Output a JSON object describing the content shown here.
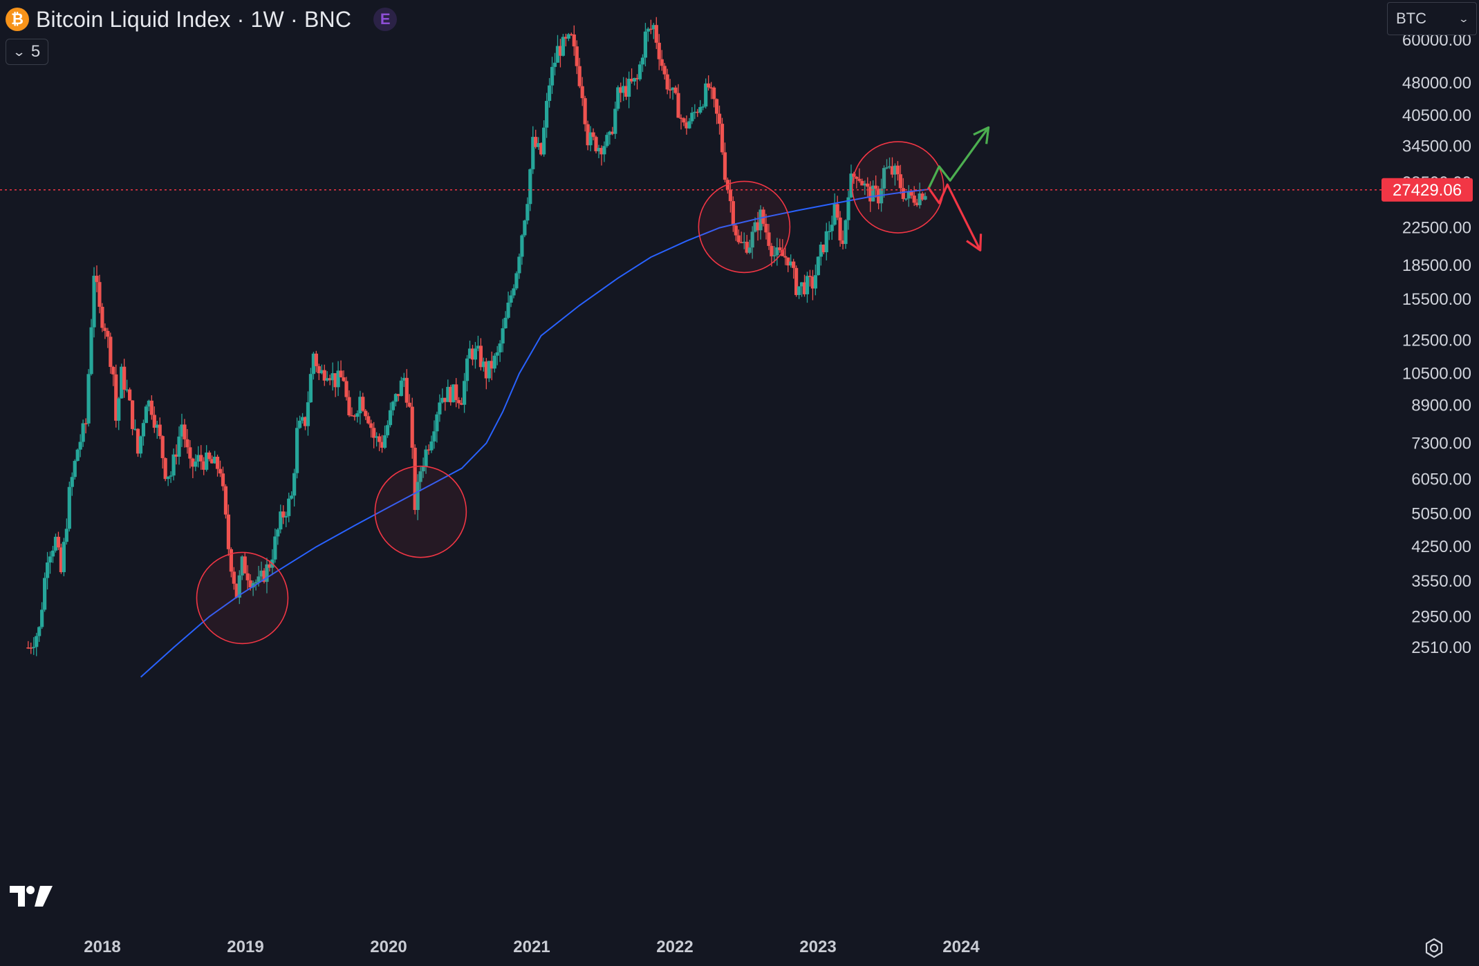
{
  "header": {
    "coin_symbol": "₿",
    "title": "Bitcoin Liquid Index · 1W · BNC",
    "exchange_badge": "E",
    "collapse_count": "5"
  },
  "currency_selector": {
    "value": "BTC"
  },
  "colors": {
    "background": "#141722",
    "up_candle": "#26a69a",
    "down_candle": "#ef5350",
    "moving_average": "#2962ff",
    "circle": "#f23645",
    "bull_arrow": "#4caf50",
    "bear_arrow": "#f23645",
    "price_line": "#f23645"
  },
  "icons": {
    "logo": "tradingview-logo-icon",
    "settings": "gear-icon",
    "collapse": "chevron-down-icon",
    "currency_dropdown": "chevron-down-icon"
  },
  "chart_data": {
    "type": "candlestick",
    "symbol": "Bitcoin Liquid Index",
    "interval": "1W",
    "source": "BNC",
    "scale": "log",
    "current_price": "27429.06",
    "y_tick_labels": [
      "60000.00",
      "48000.00",
      "40500.00",
      "34500.00",
      "28500.00",
      "22500.00",
      "18500.00",
      "15500.00",
      "12500.00",
      "10500.00",
      "8900.00",
      "7300.00",
      "6050.00",
      "5050.00",
      "4250.00",
      "3550.00",
      "2950.00",
      "2510.00"
    ],
    "x_tick_labels": [
      "2018",
      "2019",
      "2020",
      "2021",
      "2022",
      "2023",
      "2024"
    ],
    "moving_average_points": [
      [
        "2018-04-09",
        2150
      ],
      [
        "2018-07-02",
        2510
      ],
      [
        "2018-10-01",
        2950
      ],
      [
        "2018-12-17",
        3300
      ],
      [
        "2019-03-25",
        3750
      ],
      [
        "2019-07-01",
        4250
      ],
      [
        "2019-10-07",
        4750
      ],
      [
        "2020-01-06",
        5250
      ],
      [
        "2020-03-30",
        5750
      ],
      [
        "2020-07-06",
        6400
      ],
      [
        "2020-09-07",
        7300
      ],
      [
        "2020-10-19",
        8600
      ],
      [
        "2020-11-30",
        10500
      ],
      [
        "2021-01-25",
        12800
      ],
      [
        "2021-05-03",
        15000
      ],
      [
        "2021-08-09",
        17300
      ],
      [
        "2021-11-01",
        19300
      ],
      [
        "2022-01-31",
        21000
      ],
      [
        "2022-04-25",
        22500
      ],
      [
        "2022-08-01",
        23600
      ],
      [
        "2022-11-07",
        24600
      ],
      [
        "2023-02-06",
        25500
      ],
      [
        "2023-05-08",
        26400
      ],
      [
        "2023-08-07",
        27100
      ],
      [
        "2023-10-09",
        27500
      ]
    ],
    "weekly_closes": [
      [
        "2017-06-26",
        2510
      ],
      [
        "2017-07-24",
        2750
      ],
      [
        "2017-08-14",
        4100
      ],
      [
        "2017-09-04",
        4400
      ],
      [
        "2017-09-18",
        3700
      ],
      [
        "2017-10-09",
        5600
      ],
      [
        "2017-10-30",
        7100
      ],
      [
        "2017-11-20",
        8100
      ],
      [
        "2017-12-11",
        18000
      ],
      [
        "2017-12-25",
        14500
      ],
      [
        "2018-01-08",
        13500
      ],
      [
        "2018-01-29",
        10500
      ],
      [
        "2018-02-05",
        8200
      ],
      [
        "2018-02-19",
        10500
      ],
      [
        "2018-03-05",
        9500
      ],
      [
        "2018-03-26",
        7600
      ],
      [
        "2018-04-02",
        6900
      ],
      [
        "2018-04-23",
        9200
      ],
      [
        "2018-05-07",
        8800
      ],
      [
        "2018-05-28",
        7400
      ],
      [
        "2018-06-11",
        6300
      ],
      [
        "2018-06-25",
        6200
      ],
      [
        "2018-07-23",
        8100
      ],
      [
        "2018-08-13",
        6400
      ],
      [
        "2018-09-03",
        6700
      ],
      [
        "2018-10-01",
        6600
      ],
      [
        "2018-10-29",
        6400
      ],
      [
        "2018-11-19",
        4200
      ],
      [
        "2018-12-10",
        3300
      ],
      [
        "2018-12-24",
        3900
      ],
      [
        "2019-01-14",
        3600
      ],
      [
        "2019-02-04",
        3500
      ],
      [
        "2019-03-04",
        3900
      ],
      [
        "2019-04-01",
        4900
      ],
      [
        "2019-04-29",
        5500
      ],
      [
        "2019-05-13",
        7800
      ],
      [
        "2019-06-03",
        8200
      ],
      [
        "2019-06-24",
        11800
      ],
      [
        "2019-07-08",
        10400
      ],
      [
        "2019-07-29",
        10800
      ],
      [
        "2019-08-19",
        10100
      ],
      [
        "2019-09-09",
        10300
      ],
      [
        "2019-09-23",
        8000
      ],
      [
        "2019-10-21",
        9300
      ],
      [
        "2019-11-11",
        8400
      ],
      [
        "2019-11-25",
        7500
      ],
      [
        "2019-12-16",
        7300
      ],
      [
        "2020-01-13",
        8900
      ],
      [
        "2020-02-10",
        10300
      ],
      [
        "2020-02-24",
        8600
      ],
      [
        "2020-03-09",
        5200
      ],
      [
        "2020-03-23",
        6400
      ],
      [
        "2020-04-20",
        7700
      ],
      [
        "2020-05-11",
        9300
      ],
      [
        "2020-06-08",
        9500
      ],
      [
        "2020-07-06",
        9300
      ],
      [
        "2020-07-27",
        11800
      ],
      [
        "2020-08-17",
        11600
      ],
      [
        "2020-09-07",
        10500
      ],
      [
        "2020-10-05",
        11500
      ],
      [
        "2020-10-26",
        13800
      ],
      [
        "2020-11-23",
        18200
      ],
      [
        "2020-12-21",
        26500
      ],
      [
        "2021-01-04",
        35000
      ],
      [
        "2021-01-25",
        33000
      ],
      [
        "2021-02-15",
        48000
      ],
      [
        "2021-03-08",
        57000
      ],
      [
        "2021-04-12",
        60000
      ],
      [
        "2021-05-10",
        46000
      ],
      [
        "2021-05-24",
        36000
      ],
      [
        "2021-06-21",
        34500
      ],
      [
        "2021-07-19",
        35500
      ],
      [
        "2021-08-09",
        45000
      ],
      [
        "2021-09-06",
        47000
      ],
      [
        "2021-09-27",
        48500
      ],
      [
        "2021-10-18",
        61500
      ],
      [
        "2021-11-08",
        64500
      ],
      [
        "2021-12-06",
        49500
      ],
      [
        "2022-01-10",
        42000
      ],
      [
        "2022-01-24",
        38000
      ],
      [
        "2022-02-14",
        40000
      ],
      [
        "2022-03-28",
        47000
      ],
      [
        "2022-04-25",
        38000
      ],
      [
        "2022-05-09",
        30000
      ],
      [
        "2022-06-13",
        20500
      ],
      [
        "2022-07-11",
        20800
      ],
      [
        "2022-08-08",
        24000
      ],
      [
        "2022-09-12",
        19500
      ],
      [
        "2022-10-17",
        19300
      ],
      [
        "2022-11-07",
        16500
      ],
      [
        "2022-12-19",
        16800
      ],
      [
        "2023-01-09",
        19800
      ],
      [
        "2023-02-13",
        24500
      ],
      [
        "2023-03-06",
        20500
      ],
      [
        "2023-03-20",
        28000
      ],
      [
        "2023-04-10",
        30300
      ],
      [
        "2023-05-08",
        27000
      ],
      [
        "2023-06-05",
        26500
      ],
      [
        "2023-06-19",
        30500
      ],
      [
        "2023-07-17",
        29900
      ],
      [
        "2023-08-14",
        26200
      ],
      [
        "2023-09-11",
        26600
      ],
      [
        "2023-10-02",
        27429
      ]
    ],
    "annotations": [
      {
        "shape": "circle",
        "date": "2018-12-24",
        "price": 3250
      },
      {
        "shape": "circle",
        "date": "2020-03-23",
        "price": 5100
      },
      {
        "shape": "circle",
        "date": "2022-06-27",
        "price": 22600
      },
      {
        "shape": "circle",
        "date": "2023-07-24",
        "price": 27800
      },
      {
        "shape": "arrow",
        "direction": "up",
        "path": [
          [
            "2023-10-09",
            27500
          ],
          [
            "2023-11-06",
            31000
          ],
          [
            "2023-12-04",
            28800
          ],
          [
            "2024-03-11",
            38000
          ]
        ]
      },
      {
        "shape": "arrow",
        "direction": "down",
        "path": [
          [
            "2023-10-09",
            27800
          ],
          [
            "2023-11-06",
            25600
          ],
          [
            "2023-11-27",
            28200
          ],
          [
            "2024-02-19",
            20000
          ]
        ]
      }
    ]
  }
}
